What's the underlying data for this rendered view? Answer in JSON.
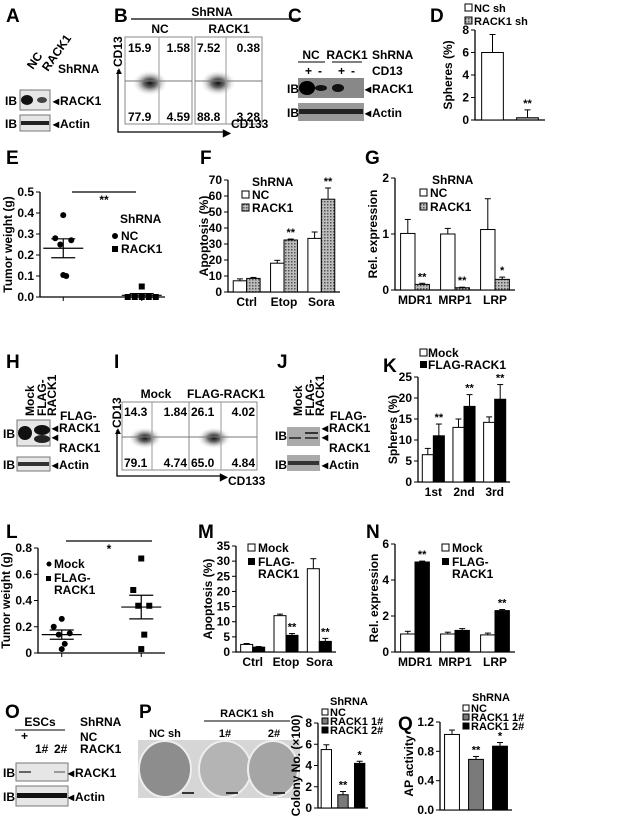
{
  "panels": {
    "A": {
      "letter": "A",
      "lanes": [
        "NC",
        "RACK1"
      ],
      "header": "ShRNA",
      "ib": "IB",
      "targets": [
        "RACK1",
        "Actin"
      ]
    },
    "B": {
      "letter": "B",
      "title": "ShRNA",
      "groups": [
        "NC",
        "RACK1"
      ],
      "quadrants": [
        [
          "15.9",
          "1.58",
          "77.9",
          "4.59"
        ],
        [
          "7.52",
          "0.38",
          "88.8",
          "3.28"
        ]
      ],
      "xaxis": "CD133",
      "yaxis": "CD13"
    },
    "C": {
      "letter": "C",
      "groups": [
        "NC",
        "RACK1"
      ],
      "header": "ShRNA",
      "cd13_label": "CD13",
      "signs": [
        "+",
        "-",
        "+",
        "-"
      ],
      "ib": "IB",
      "targets": [
        "RACK1",
        "Actin"
      ]
    },
    "D": {
      "letter": "D",
      "legend": [
        "NC sh",
        "RACK1 sh"
      ]
    },
    "E": {
      "letter": "E",
      "legend_title": "ShRNA",
      "legend": [
        "NC",
        "RACK1"
      ]
    },
    "F": {
      "letter": "F",
      "legend_title": "ShRNA",
      "legend": [
        "NC",
        "RACK1"
      ]
    },
    "G": {
      "letter": "G",
      "legend_title": "ShRNA",
      "legend": [
        "NC",
        "RACK1"
      ]
    },
    "H": {
      "letter": "H",
      "lanes": [
        "Mock",
        "FLAG-",
        "RACK1"
      ],
      "ib": "IB",
      "flag_label": [
        "FLAG-",
        "RACK1"
      ],
      "rack1_label": "RACK1",
      "actin_label": "Actin"
    },
    "I": {
      "letter": "I",
      "groups": [
        "Mock",
        "FLAG-RACK1"
      ],
      "quadrants": [
        [
          "14.3",
          "1.84",
          "79.1",
          "4.74"
        ],
        [
          "26.1",
          "4.02",
          "65.0",
          "4.84"
        ]
      ],
      "xaxis": "CD133",
      "yaxis": "CD13"
    },
    "J": {
      "letter": "J",
      "lanes": [
        "Mock",
        "FLAG-",
        "RACK1"
      ],
      "ib": "IB",
      "flag_label": [
        "FLAG-",
        "RACK1"
      ],
      "rack1_label": "RACK1",
      "actin_label": "Actin"
    },
    "K": {
      "letter": "K",
      "legend": [
        "Mock",
        "FLAG-RACK1"
      ]
    },
    "L": {
      "letter": "L",
      "legend": [
        "Mock",
        "FLAG-",
        "RACK1"
      ]
    },
    "M": {
      "letter": "M",
      "legend": [
        "Mock",
        "FLAG-",
        "RACK1"
      ]
    },
    "N": {
      "letter": "N",
      "legend": [
        "Mock",
        "FLAG-",
        "RACK1"
      ]
    },
    "O": {
      "letter": "O",
      "cells": "ESCs",
      "header": "ShRNA",
      "row1": [
        "+",
        "NC"
      ],
      "row2": [
        "1#",
        "2#",
        "RACK1"
      ],
      "ib": "IB",
      "targets": [
        "RACK1",
        "Actin"
      ]
    },
    "P": {
      "letter": "P",
      "group_label": "RACK1 sh",
      "plates": [
        "NC sh",
        "1#",
        "2#"
      ],
      "legend_title": "ShRNA",
      "legend": [
        "NC",
        "RACK1 1#",
        "RACK1 2#"
      ]
    },
    "Q": {
      "letter": "Q",
      "legend_title": "ShRNA",
      "legend": [
        "NC",
        "RACK1 1#",
        "RACK1 2#"
      ]
    }
  },
  "colors": {
    "nc": "#ffffff",
    "rack1_sh": "hatched-gray",
    "flag": "#000000",
    "sh1": "#7a7a7a",
    "sh2": "#000000"
  },
  "chart_data": [
    {
      "id": "D",
      "type": "bar",
      "ylabel": "Spheres (%)",
      "ylim": [
        0,
        8
      ],
      "yticks": [
        0,
        2,
        4,
        6,
        8
      ],
      "ytick_labels": [
        "0",
        "2",
        "4",
        "6",
        "8"
      ],
      "categories": [
        "",
        ""
      ],
      "series": [
        {
          "name": "NC sh / RACK1 sh",
          "values": [
            6.0,
            0.2
          ],
          "errors": [
            1.6,
            0.7
          ],
          "fills": [
            "white",
            "hatch"
          ],
          "sig": [
            "",
            "**"
          ]
        }
      ]
    },
    {
      "id": "E",
      "type": "scatter",
      "ylabel": "Tumor weight (g)",
      "ylim": [
        0,
        0.5
      ],
      "yticks": [
        0,
        0.1,
        0.2,
        0.3,
        0.4,
        0.5
      ],
      "ytick_labels": [
        "0.0",
        "0.1",
        "0.2",
        "0.3",
        "0.4",
        "0.5"
      ],
      "groups": [
        {
          "name": "NC",
          "marker": "circle",
          "values": [
            0.39,
            0.28,
            0.27,
            0.25,
            0.1,
            0.105
          ],
          "mean": 0.232,
          "sem": 0.045
        },
        {
          "name": "RACK1",
          "marker": "square",
          "values": [
            0.05,
            0.0,
            0.0,
            0.0,
            0.0,
            0.0
          ],
          "mean": 0.008,
          "sem": 0.008
        }
      ],
      "significance": "**"
    },
    {
      "id": "F",
      "type": "bar",
      "ylabel": "Apoptosis (%)",
      "ylim": [
        0,
        70
      ],
      "yticks": [
        0,
        10,
        20,
        30,
        40,
        50,
        60,
        70
      ],
      "ytick_labels": [
        "0",
        "10",
        "20",
        "30",
        "40",
        "50",
        "60",
        "70"
      ],
      "categories": [
        "Ctrl",
        "Etop",
        "Sora"
      ],
      "series": [
        {
          "name": "NC",
          "values": [
            7,
            18,
            33.5
          ],
          "errors": [
            1.2,
            1.8,
            4
          ],
          "fill": "white",
          "sig": [
            "",
            "",
            ""
          ]
        },
        {
          "name": "RACK1",
          "values": [
            8.5,
            32.5,
            58
          ],
          "errors": [
            0.6,
            0.6,
            7
          ],
          "fill": "hatch",
          "sig": [
            "",
            "**",
            "**"
          ]
        }
      ]
    },
    {
      "id": "G",
      "type": "bar",
      "ylabel": "Rel. expression",
      "ylim": [
        0,
        2
      ],
      "yticks": [
        0,
        1,
        2
      ],
      "ytick_labels": [
        "0",
        "1",
        "2"
      ],
      "categories": [
        "MDR1",
        "MRP1",
        "LRP"
      ],
      "series": [
        {
          "name": "NC",
          "values": [
            1.01,
            1.0,
            1.08
          ],
          "errors": [
            0.25,
            0.1,
            0.55
          ],
          "fill": "white",
          "sig": [
            "",
            "",
            ""
          ]
        },
        {
          "name": "RACK1",
          "values": [
            0.1,
            0.04,
            0.19
          ],
          "errors": [
            0.02,
            0.01,
            0.04
          ],
          "fill": "hatch",
          "sig": [
            "**",
            "**",
            "*"
          ]
        }
      ]
    },
    {
      "id": "K",
      "type": "bar",
      "ylabel": "Spheres (%)",
      "ylim": [
        0,
        25
      ],
      "yticks": [
        0,
        5,
        10,
        15,
        20,
        25
      ],
      "ytick_labels": [
        "0",
        "5",
        "10",
        "15",
        "20",
        "25"
      ],
      "categories": [
        "1st",
        "2nd",
        "3rd"
      ],
      "series": [
        {
          "name": "Mock",
          "values": [
            6.5,
            13,
            14.2
          ],
          "errors": [
            1.5,
            2,
            1.3
          ],
          "fill": "white",
          "sig": [
            "",
            "",
            ""
          ]
        },
        {
          "name": "FLAG-RACK1",
          "values": [
            11,
            18,
            19.7
          ],
          "errors": [
            2.8,
            2.8,
            3.5
          ],
          "fill": "black",
          "sig": [
            "**",
            "**",
            "**"
          ]
        }
      ]
    },
    {
      "id": "L",
      "type": "scatter",
      "ylabel": "Tumor weight (g)",
      "ylim": [
        0,
        0.8
      ],
      "yticks": [
        0,
        0.2,
        0.4,
        0.6,
        0.8
      ],
      "ytick_labels": [
        "0",
        "0.2",
        "0.4",
        "0.6",
        "0.8"
      ],
      "groups": [
        {
          "name": "Mock",
          "marker": "circle",
          "values": [
            0.26,
            0.2,
            0.15,
            0.14,
            0.07,
            0.03
          ],
          "mean": 0.14,
          "sem": 0.035
        },
        {
          "name": "FLAG-RACK1",
          "marker": "square",
          "values": [
            0.72,
            0.48,
            0.36,
            0.36,
            0.14,
            0.03
          ],
          "mean": 0.35,
          "sem": 0.09
        }
      ],
      "significance": "*"
    },
    {
      "id": "M",
      "type": "bar",
      "ylabel": "Apoptosis (%)",
      "ylim": [
        0,
        35
      ],
      "yticks": [
        0,
        5,
        10,
        15,
        20,
        25,
        30,
        35
      ],
      "ytick_labels": [
        "0",
        "5",
        "10",
        "15",
        "20",
        "25",
        "30",
        "35"
      ],
      "categories": [
        "Ctrl",
        "Etop",
        "Sora"
      ],
      "series": [
        {
          "name": "Mock",
          "values": [
            2.5,
            12,
            27.5
          ],
          "errors": [
            0.3,
            0.5,
            3.3
          ],
          "fill": "white",
          "sig": [
            "",
            "",
            ""
          ]
        },
        {
          "name": "FLAG-RACK1",
          "values": [
            1.6,
            5.5,
            3.5
          ],
          "errors": [
            0.2,
            0.6,
            1.0
          ],
          "fill": "black",
          "sig": [
            "",
            "**",
            "**"
          ]
        }
      ]
    },
    {
      "id": "N",
      "type": "bar",
      "ylabel": "Rel. expression",
      "ylim": [
        0,
        6
      ],
      "yticks": [
        0,
        2,
        4,
        6
      ],
      "ytick_labels": [
        "0",
        "2",
        "4",
        "6"
      ],
      "categories": [
        "MDR1",
        "MRP1",
        "LRP"
      ],
      "series": [
        {
          "name": "Mock",
          "values": [
            1.0,
            1.0,
            0.95
          ],
          "errors": [
            0.15,
            0.1,
            0.1
          ],
          "fill": "white",
          "sig": [
            "",
            "",
            ""
          ]
        },
        {
          "name": "FLAG-RACK1",
          "values": [
            5.0,
            1.2,
            2.3
          ],
          "errors": [
            0.05,
            0.1,
            0.06
          ],
          "fill": "black",
          "sig": [
            "**",
            "",
            "**"
          ]
        }
      ]
    },
    {
      "id": "P",
      "type": "bar",
      "ylabel": "Colony No. (×100)",
      "ylim": [
        0,
        8
      ],
      "yticks": [
        0,
        2,
        4,
        6,
        8
      ],
      "ytick_labels": [
        "0",
        "2",
        "4",
        "6",
        "8"
      ],
      "categories": [
        "",
        "",
        ""
      ],
      "series": [
        {
          "name": "NC / RACK1 1# / RACK1 2#",
          "values": [
            5.5,
            1.25,
            4.2
          ],
          "errors": [
            0.45,
            0.3,
            0.2
          ],
          "fills": [
            "white",
            "gray",
            "black"
          ],
          "sig": [
            "",
            "**",
            "*"
          ]
        }
      ]
    },
    {
      "id": "Q",
      "type": "bar",
      "ylabel": "AP activity",
      "ylim": [
        0,
        1.2
      ],
      "yticks": [
        0,
        0.4,
        0.8,
        1.2
      ],
      "ytick_labels": [
        "0.0",
        "0.4",
        "0.8",
        "1.2"
      ],
      "categories": [
        "",
        "",
        ""
      ],
      "series": [
        {
          "name": "NC / RACK1 1# / RACK1 2#",
          "values": [
            1.03,
            0.69,
            0.87
          ],
          "errors": [
            0.06,
            0.04,
            0.05
          ],
          "fills": [
            "white",
            "gray",
            "black"
          ],
          "sig": [
            "",
            "**",
            "*"
          ]
        }
      ]
    }
  ]
}
